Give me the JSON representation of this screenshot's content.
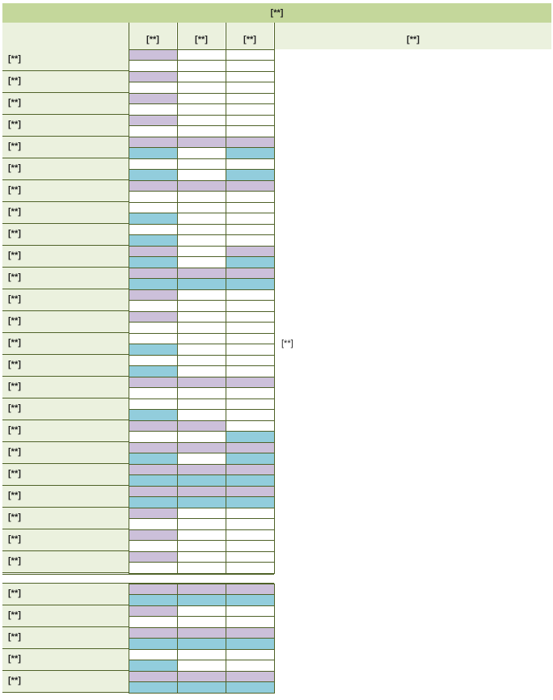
{
  "sheet": {
    "title": "[**]",
    "col_headers": [
      "[**]",
      "[**]",
      "[**]"
    ],
    "right_header": "[**]",
    "note": "[**]",
    "colors": {
      "purple": "#ccc0da",
      "blue": "#92cddc",
      "header": "#c4d79b",
      "label_bg": "#ebf1de"
    },
    "group1": [
      {
        "label": "[**]",
        "top": [
          "P",
          "W",
          "W"
        ],
        "bottom": [
          "W",
          "W",
          "W"
        ]
      },
      {
        "label": "[**]",
        "top": [
          "P",
          "W",
          "W"
        ],
        "bottom": [
          "W",
          "W",
          "W"
        ]
      },
      {
        "label": "[**]",
        "top": [
          "P",
          "W",
          "W"
        ],
        "bottom": [
          "W",
          "W",
          "W"
        ]
      },
      {
        "label": "[**]",
        "top": [
          "P",
          "W",
          "W"
        ],
        "bottom": [
          "W",
          "W",
          "W"
        ]
      },
      {
        "label": "[**]",
        "top": [
          "P",
          "P",
          "P"
        ],
        "bottom": [
          "B",
          "W",
          "B"
        ]
      },
      {
        "label": "[**]",
        "top": [
          "W",
          "W",
          "W"
        ],
        "bottom": [
          "B",
          "W",
          "B"
        ]
      },
      {
        "label": "[**]",
        "top": [
          "P",
          "P",
          "P"
        ],
        "bottom": [
          "W",
          "W",
          "W"
        ]
      },
      {
        "label": "[**]",
        "top": [
          "W",
          "W",
          "W"
        ],
        "bottom": [
          "B",
          "W",
          "W"
        ]
      },
      {
        "label": "[**]",
        "top": [
          "W",
          "W",
          "W"
        ],
        "bottom": [
          "B",
          "W",
          "W"
        ]
      },
      {
        "label": "[**]",
        "top": [
          "P",
          "W",
          "P"
        ],
        "bottom": [
          "B",
          "W",
          "B"
        ]
      },
      {
        "label": "[**]",
        "top": [
          "P",
          "P",
          "P"
        ],
        "bottom": [
          "B",
          "B",
          "B"
        ]
      },
      {
        "label": "[**]",
        "top": [
          "P",
          "W",
          "W"
        ],
        "bottom": [
          "W",
          "W",
          "W"
        ]
      },
      {
        "label": "[**]",
        "top": [
          "P",
          "W",
          "W"
        ],
        "bottom": [
          "W",
          "W",
          "W"
        ]
      },
      {
        "label": "[**]",
        "top": [
          "W",
          "W",
          "W"
        ],
        "bottom": [
          "B",
          "W",
          "W"
        ]
      },
      {
        "label": "[**]",
        "top": [
          "W",
          "W",
          "W"
        ],
        "bottom": [
          "B",
          "W",
          "W"
        ]
      },
      {
        "label": "[**]",
        "top": [
          "P",
          "P",
          "P"
        ],
        "bottom": [
          "W",
          "W",
          "W"
        ]
      },
      {
        "label": "[**]",
        "top": [
          "W",
          "W",
          "W"
        ],
        "bottom": [
          "B",
          "W",
          "W"
        ]
      },
      {
        "label": "[**]",
        "top": [
          "P",
          "P",
          "W"
        ],
        "bottom": [
          "W",
          "W",
          "B"
        ]
      },
      {
        "label": "[**]",
        "top": [
          "P",
          "P",
          "P"
        ],
        "bottom": [
          "B",
          "W",
          "B"
        ]
      },
      {
        "label": "[**]",
        "top": [
          "P",
          "P",
          "P"
        ],
        "bottom": [
          "B",
          "B",
          "B"
        ]
      },
      {
        "label": "[**]",
        "top": [
          "P",
          "P",
          "P"
        ],
        "bottom": [
          "B",
          "B",
          "B"
        ]
      },
      {
        "label": "[**]",
        "top": [
          "P",
          "W",
          "W"
        ],
        "bottom": [
          "W",
          "W",
          "W"
        ]
      },
      {
        "label": "[**]",
        "top": [
          "P",
          "W",
          "W"
        ],
        "bottom": [
          "W",
          "W",
          "W"
        ]
      },
      {
        "label": "[**]",
        "top": [
          "P",
          "W",
          "W"
        ],
        "bottom": [
          "W",
          "W",
          "W"
        ]
      }
    ],
    "group2": [
      {
        "label": "[**]",
        "top": [
          "P",
          "P",
          "P"
        ],
        "bottom": [
          "B",
          "B",
          "B"
        ]
      },
      {
        "label": "[**]",
        "top": [
          "P",
          "W",
          "W"
        ],
        "bottom": [
          "W",
          "W",
          "W"
        ]
      },
      {
        "label": "[**]",
        "top": [
          "P",
          "P",
          "P"
        ],
        "bottom": [
          "B",
          "B",
          "B"
        ]
      },
      {
        "label": "[**]",
        "top": [
          "W",
          "W",
          "W"
        ],
        "bottom": [
          "B",
          "W",
          "W"
        ]
      },
      {
        "label": "[**]",
        "top": [
          "P",
          "P",
          "P"
        ],
        "bottom": [
          "B",
          "B",
          "B"
        ]
      }
    ]
  }
}
